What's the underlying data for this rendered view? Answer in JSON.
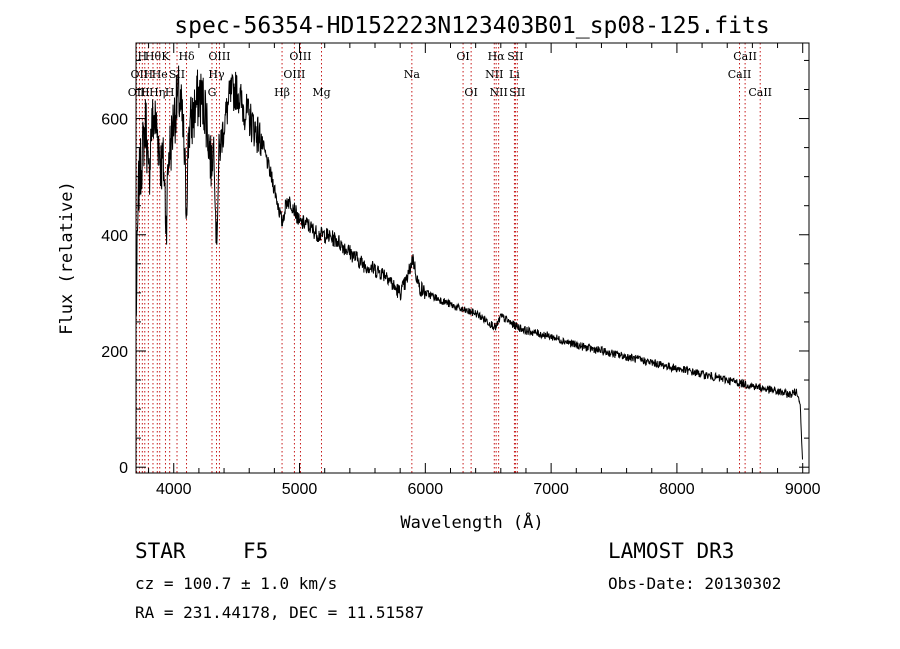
{
  "chart_data": {
    "type": "line",
    "title": "spec-56354-HD152223N123403B01_sp08-125.fits",
    "xlabel": "Wavelength (Å)",
    "ylabel": "Flux (relative)",
    "xlim": [
      3700,
      9050
    ],
    "ylim": [
      -10,
      730
    ],
    "xticks": [
      4000,
      5000,
      6000,
      7000,
      8000,
      9000
    ],
    "yticks": [
      0,
      200,
      400,
      600
    ],
    "series": [
      {
        "name": "flux",
        "x": [
          3700,
          3720,
          3740,
          3760,
          3780,
          3800,
          3820,
          3840,
          3860,
          3880,
          3900,
          3920,
          3940,
          3960,
          3980,
          4000,
          4020,
          4040,
          4060,
          4080,
          4100,
          4120,
          4150,
          4200,
          4250,
          4300,
          4320,
          4340,
          4360,
          4400,
          4450,
          4500,
          4550,
          4600,
          4650,
          4700,
          4750,
          4800,
          4861,
          4900,
          4950,
          5000,
          5050,
          5100,
          5150,
          5200,
          5300,
          5400,
          5500,
          5600,
          5700,
          5750,
          5800,
          5850,
          5900,
          5950,
          6000,
          6100,
          6200,
          6300,
          6400,
          6500,
          6563,
          6600,
          6700,
          6800,
          6900,
          7000,
          7200,
          7400,
          7600,
          7800,
          8000,
          8200,
          8400,
          8500,
          8600,
          8700,
          8800,
          8900,
          8950,
          8980,
          9000
        ],
        "y": [
          250,
          480,
          520,
          560,
          600,
          480,
          580,
          600,
          590,
          560,
          520,
          520,
          420,
          540,
          560,
          600,
          620,
          640,
          610,
          560,
          450,
          580,
          600,
          640,
          620,
          520,
          560,
          380,
          540,
          590,
          640,
          650,
          620,
          600,
          580,
          560,
          520,
          480,
          420,
          460,
          450,
          420,
          420,
          410,
          400,
          400,
          390,
          370,
          350,
          340,
          330,
          310,
          300,
          320,
          360,
          310,
          300,
          290,
          280,
          270,
          265,
          250,
          240,
          260,
          245,
          235,
          230,
          225,
          210,
          200,
          190,
          180,
          170,
          160,
          150,
          145,
          140,
          135,
          130,
          125,
          130,
          110,
          0
        ]
      }
    ],
    "lines": [
      {
        "wl": 3705,
        "label": "OII",
        "row": 2
      },
      {
        "wl": 3727,
        "label": "OII",
        "row": 1
      },
      {
        "wl": 3750,
        "label": "H",
        "row": 0
      },
      {
        "wl": 3770,
        "label": "H",
        "row": 2
      },
      {
        "wl": 3798,
        "label": "H",
        "row": 1
      },
      {
        "wl": 3835,
        "label": "Hθ",
        "row": 0
      },
      {
        "wl": 3869,
        "label": "Hη",
        "row": 2
      },
      {
        "wl": 3889,
        "label": "He",
        "row": 1
      },
      {
        "wl": 3934,
        "label": "K",
        "row": 0
      },
      {
        "wl": 3968,
        "label": "H",
        "row": 2
      },
      {
        "wl": 4026,
        "label": "SII",
        "row": 1
      },
      {
        "wl": 4102,
        "label": "Hδ",
        "row": 0
      },
      {
        "wl": 4304,
        "label": "G",
        "row": 2
      },
      {
        "wl": 4340,
        "label": "Hγ",
        "row": 1
      },
      {
        "wl": 4363,
        "label": "OIII",
        "row": 0
      },
      {
        "wl": 4861,
        "label": "Hβ",
        "row": 2
      },
      {
        "wl": 4959,
        "label": "OIII",
        "row": 1
      },
      {
        "wl": 5007,
        "label": "OIII",
        "row": 0
      },
      {
        "wl": 5175,
        "label": "Mg",
        "row": 2
      },
      {
        "wl": 5893,
        "label": "Na",
        "row": 1
      },
      {
        "wl": 6300,
        "label": "OI",
        "row": 0
      },
      {
        "wl": 6364,
        "label": "OI",
        "row": 2
      },
      {
        "wl": 6548,
        "label": "NII",
        "row": 1
      },
      {
        "wl": 6563,
        "label": "Hα",
        "row": 0
      },
      {
        "wl": 6583,
        "label": "NII",
        "row": 2
      },
      {
        "wl": 6708,
        "label": "Li",
        "row": 1
      },
      {
        "wl": 6716,
        "label": "SII",
        "row": 0
      },
      {
        "wl": 6731,
        "label": "SII",
        "row": 2
      },
      {
        "wl": 8498,
        "label": "CaII",
        "row": 1
      },
      {
        "wl": 8542,
        "label": "CaII",
        "row": 0
      },
      {
        "wl": 8662,
        "label": "CaII",
        "row": 2
      }
    ]
  },
  "info": {
    "class_label": "STAR",
    "subclass": "F5",
    "cz": "cz = 100.7 ± 1.0 km/s",
    "coords": "RA = 231.44178, DEC =  11.51587",
    "survey": "LAMOST DR3",
    "obs_date": "Obs-Date: 20130302"
  },
  "colors": {
    "spectrum": "#000000",
    "line_marker": "#c00000",
    "axis": "#000000"
  }
}
